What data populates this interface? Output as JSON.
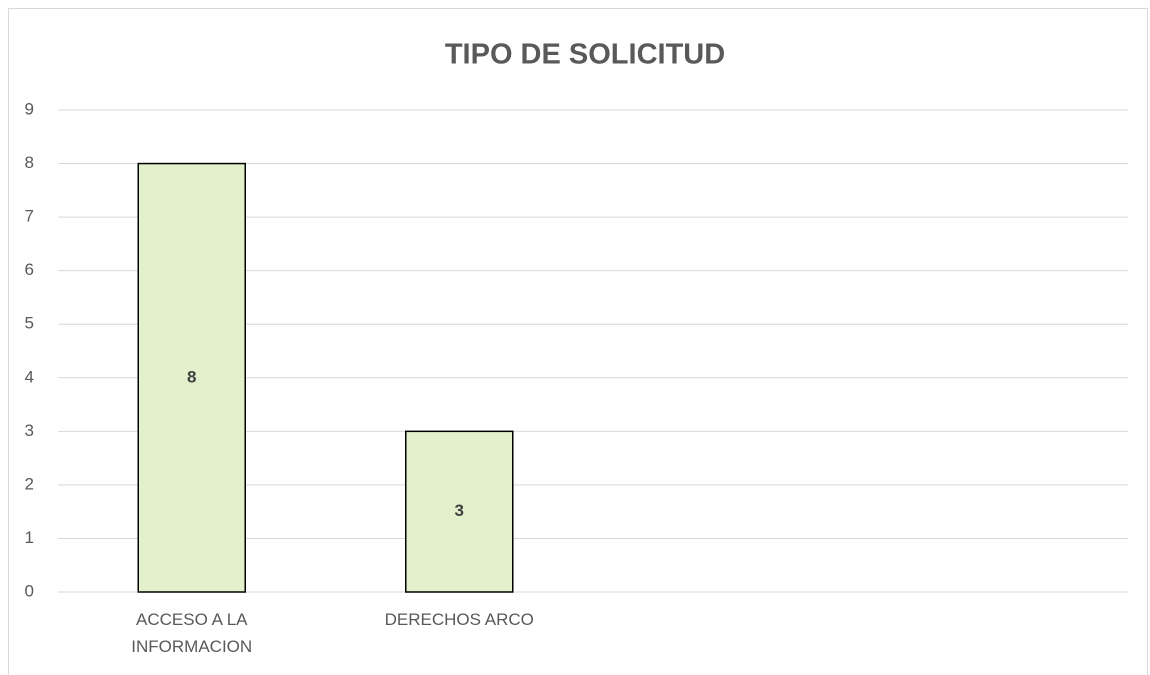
{
  "chart_data": {
    "type": "bar",
    "title": "TIPO DE SOLICITUD",
    "categories": [
      "ACCESO A LA INFORMACION",
      "DERECHOS ARCO",
      null,
      null
    ],
    "values": [
      8,
      3,
      null,
      null
    ],
    "color": "#e2f0cb",
    "edge_color": "#000000",
    "ylim": [
      0,
      9
    ],
    "yticks": [
      0,
      1,
      2,
      3,
      4,
      5,
      6,
      7,
      8,
      9
    ],
    "grid": true
  }
}
